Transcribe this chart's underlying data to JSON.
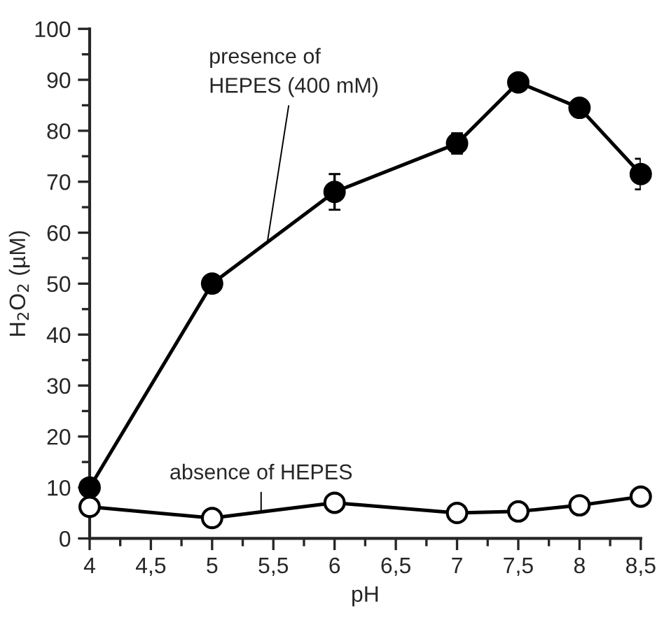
{
  "chart_data": {
    "type": "line",
    "xlabel": "pH",
    "ylabel": "H$_{2}$O$_{2}$ (µM)",
    "x": [
      4,
      5,
      6,
      7,
      7.5,
      8,
      8.5
    ],
    "series": [
      {
        "color": "#000000",
        "values": [
          10,
          50,
          68,
          77.5,
          89.5,
          84.5,
          71.5
        ],
        "errors": [
          null,
          1,
          3.5,
          2,
          null,
          null,
          3
        ]
      },
      {
        "color": "#ffffff",
        "values": [
          6.2,
          4,
          7,
          5,
          5.3,
          6.5,
          8.2
        ]
      }
    ],
    "annotations": [
      {
        "text": "presence of\nHEPES (400 mM)",
        "x": 5.45,
        "y": 58
      },
      {
        "text": "absence of HEPES",
        "x": 5.4,
        "y": 5.4
      }
    ],
    "xlim": [
      4,
      8.5
    ],
    "ylim": [
      0,
      100
    ],
    "xticks": [
      4,
      {
        "value": 4.25,
        "label": null
      },
      {
        "value": 4.5,
        "label": "4,5"
      },
      {
        "value": 4.75,
        "label": null
      },
      5,
      {
        "value": 5.25,
        "label": null
      },
      {
        "value": 5.5,
        "label": "5,5"
      },
      {
        "value": 5.75,
        "label": null
      },
      6,
      {
        "value": 6.25,
        "label": null
      },
      {
        "value": 6.5,
        "label": "6,5"
      },
      {
        "value": 6.75,
        "label": null
      },
      7,
      {
        "value": 7.25,
        "label": null
      },
      {
        "value": 7.5,
        "label": "7,5"
      },
      {
        "value": 7.75,
        "label": null
      },
      8,
      {
        "value": 8.25,
        "label": null
      },
      {
        "value": 8.5,
        "label": "8,5"
      }
    ],
    "yticks": [
      0,
      {
        "value": 5,
        "label": null
      },
      10,
      {
        "value": 15,
        "label": null
      },
      20,
      {
        "value": 25,
        "label": null
      },
      30,
      {
        "value": 35,
        "label": null
      },
      40,
      {
        "value": 45,
        "label": null
      },
      50,
      {
        "value": 55,
        "label": null
      },
      60,
      {
        "value": 65,
        "label": null
      },
      70,
      {
        "value": 75,
        "label": null
      },
      80,
      {
        "value": 85,
        "label": null
      },
      90,
      {
        "value": 95,
        "label": null
      },
      100
    ],
    "marker": "circle",
    "line_style": "solid",
    "grid": false,
    "legend": false
  }
}
